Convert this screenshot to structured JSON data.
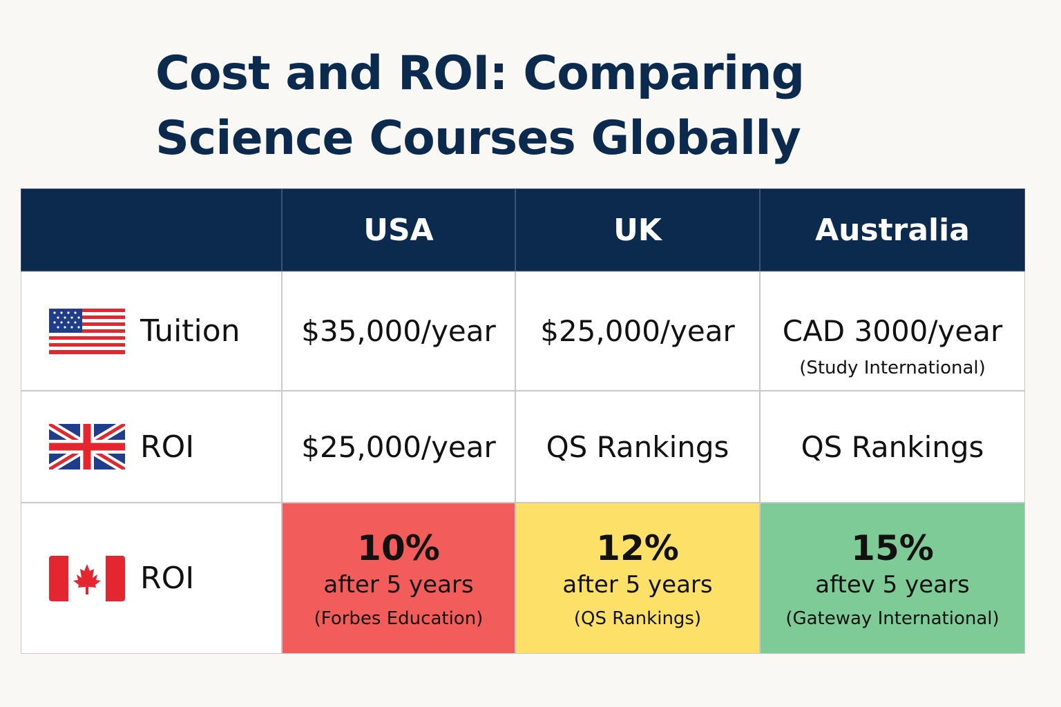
{
  "title": {
    "lines": [
      "Cost and ROI: Comparing",
      "Science Courses Globally"
    ]
  },
  "table": {
    "columns": [
      "USA",
      "UK",
      "Australia"
    ],
    "rows": [
      {
        "label": "Tuition",
        "cells": [
          {
            "text": "$35,000/year"
          },
          {
            "text": "$25,000/year"
          },
          {
            "text": "CAD 3000/year",
            "note": "(Study International)"
          }
        ]
      },
      {
        "label": "ROI",
        "cells": [
          {
            "text": "$25,000/year"
          },
          {
            "text": "QS Rankings"
          },
          {
            "text": "QS Rankings"
          }
        ]
      },
      {
        "label": "ROI",
        "cells": [
          {
            "value": "10%",
            "text": "after 5 years",
            "note": "(Forbes Education)"
          },
          {
            "value": "12%",
            "text": "after 5 years",
            "note": "(QS Rankings)"
          },
          {
            "value": "15%",
            "text": "aftev 5 years",
            "note": "(Gateway International)"
          }
        ]
      }
    ]
  }
}
